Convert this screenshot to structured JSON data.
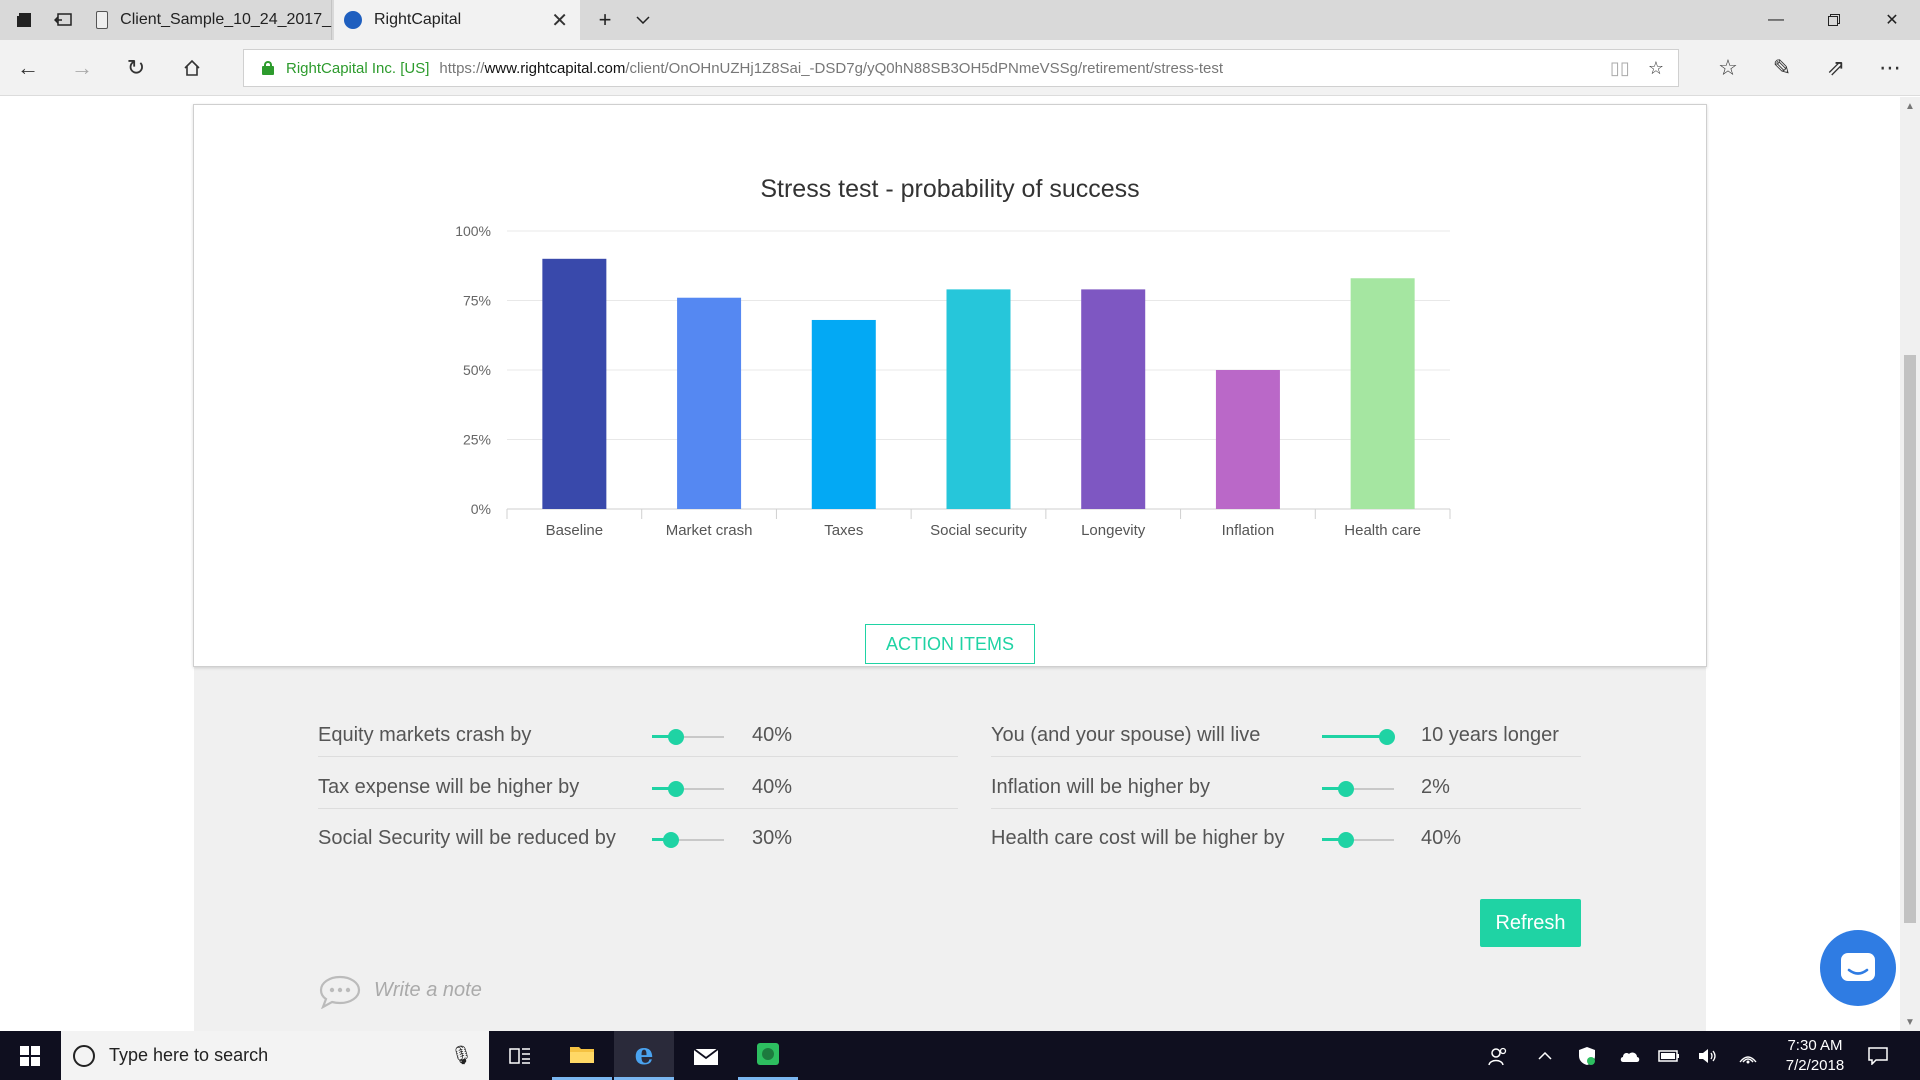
{
  "browser": {
    "tabs": [
      {
        "title": "Client_Sample_10_24_2017_",
        "active": false
      },
      {
        "title": "RightCapital",
        "active": true
      }
    ],
    "url": {
      "org": "RightCapital Inc. [US]",
      "scheme": "https://",
      "host": "www.rightcapital.com",
      "path": "/client/OnOHnUZHj1Z8Sai_-DSD7g/yQ0hN88SB3OH5dPNmeVSSg/retirement/stress-test"
    }
  },
  "chart_data": {
    "type": "bar",
    "title": "Stress test - probability of success",
    "categories": [
      "Baseline",
      "Market crash",
      "Taxes",
      "Social security",
      "Longevity",
      "Inflation",
      "Health care"
    ],
    "values": [
      90,
      76,
      68,
      79,
      79,
      50,
      83
    ],
    "colors": [
      "#3949ab",
      "#5588f2",
      "#03a9f4",
      "#26c6da",
      "#7e57c2",
      "#ba68c8",
      "#a5e6a1"
    ],
    "yticks": [
      "0%",
      "25%",
      "50%",
      "75%",
      "100%"
    ],
    "ylim": [
      0,
      100
    ],
    "grid": true
  },
  "action_items_label": "ACTION ITEMS",
  "sliders_left": [
    {
      "label": "Equity markets crash by",
      "value": "40%",
      "level": 0.33
    },
    {
      "label": "Tax expense will be higher by",
      "value": "40%",
      "level": 0.33
    },
    {
      "label": "Social Security will be reduced by",
      "value": "30%",
      "level": 0.27
    }
  ],
  "sliders_right": [
    {
      "label": "You (and your spouse) will live",
      "value": "10 years longer",
      "level": 0.9
    },
    {
      "label": "Inflation will be higher by",
      "value": "2%",
      "level": 0.33
    },
    {
      "label": "Health care cost will be higher by",
      "value": "40%",
      "level": 0.33
    }
  ],
  "refresh_label": "Refresh",
  "note_placeholder": "Write a note",
  "taskbar": {
    "search_placeholder": "Type here to search",
    "time": "7:30 AM",
    "date": "7/2/2018"
  }
}
